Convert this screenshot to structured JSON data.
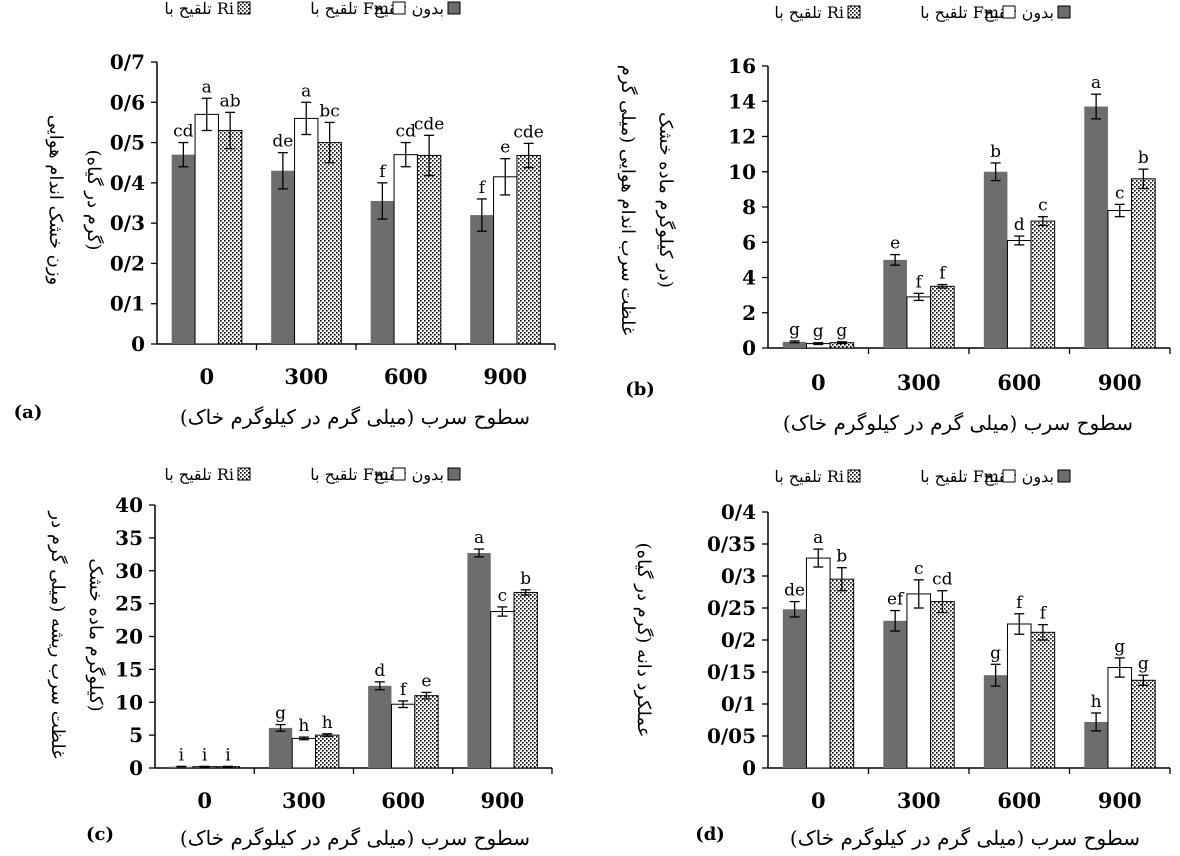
{
  "legend": [
    {
      "label": "بدون تلقیح",
      "style": "solid"
    },
    {
      "label": "تلقیح با Fm",
      "style": "open"
    },
    {
      "label": "تلقیح با Ri",
      "style": "dotted"
    }
  ],
  "colors": {
    "solid": "#6d6d6d",
    "open": "#ffffff",
    "dots": "#000000",
    "axis": "#000000"
  },
  "chart_data": [
    {
      "type": "bar",
      "panel_label": "(a)",
      "title": "",
      "xlabel": "سطوح سرب (میلی گرم در کیلوگرم خاک)",
      "ylabel_lines": [
        "وزن خشک اندام هوایی",
        "(گرم در گیاه)"
      ],
      "categories": [
        "0",
        "300",
        "600",
        "900"
      ],
      "ylim": [
        0,
        0.7
      ],
      "yticks": [
        "0",
        "0/1",
        "0/2",
        "0/3",
        "0/4",
        "0/5",
        "0/6",
        "0/7"
      ],
      "series": [
        {
          "name": "بدون تلقیح",
          "values": [
            0.47,
            0.43,
            0.355,
            0.32
          ],
          "errors": [
            0.03,
            0.045,
            0.045,
            0.04
          ],
          "letters": [
            "cd",
            "de",
            "f",
            "f"
          ]
        },
        {
          "name": "تلقیح با Fm",
          "values": [
            0.57,
            0.56,
            0.47,
            0.415
          ],
          "errors": [
            0.04,
            0.04,
            0.03,
            0.045
          ],
          "letters": [
            "a",
            "a",
            "cd",
            "e"
          ]
        },
        {
          "name": "تلقیح با Ri",
          "values": [
            0.53,
            0.5,
            0.468,
            0.468
          ],
          "errors": [
            0.045,
            0.05,
            0.05,
            0.03
          ],
          "letters": [
            "ab",
            "bc",
            "cde",
            "cde"
          ]
        }
      ]
    },
    {
      "type": "bar",
      "panel_label": "(b)",
      "title": "",
      "xlabel": "سطوح سرب (میلی گرم در کیلوگرم خاک)",
      "ylabel_lines": [
        "غلظت سرب اندام هوایی (میلی گرم",
        "در کیلوگرم ماده خشک)"
      ],
      "categories": [
        "0",
        "300",
        "600",
        "900"
      ],
      "ylim": [
        0,
        16
      ],
      "yticks": [
        "0",
        "2",
        "4",
        "6",
        "8",
        "10",
        "12",
        "14",
        "16"
      ],
      "series": [
        {
          "name": "بدون تلقیح",
          "values": [
            0.35,
            5.0,
            10.0,
            13.7
          ],
          "errors": [
            0.05,
            0.3,
            0.5,
            0.7
          ],
          "letters": [
            "g",
            "e",
            "b",
            "a"
          ]
        },
        {
          "name": "تلقیح با Fm",
          "values": [
            0.25,
            2.9,
            6.1,
            7.8
          ],
          "errors": [
            0.05,
            0.2,
            0.25,
            0.35
          ],
          "letters": [
            "g",
            "f",
            "d",
            "c"
          ]
        },
        {
          "name": "تلقیح با Ri",
          "values": [
            0.3,
            3.5,
            7.2,
            9.6
          ],
          "errors": [
            0.05,
            0.1,
            0.25,
            0.55
          ],
          "letters": [
            "g",
            "f",
            "c",
            "b"
          ]
        }
      ]
    },
    {
      "type": "bar",
      "panel_label": "(c)",
      "title": "",
      "xlabel": "سطوح سرب (میلی گرم در کیلوگرم خاک)",
      "ylabel_lines": [
        "غلظت سرب ریشه (میلی گرم در",
        "کیلوگرم ماده خشک)"
      ],
      "categories": [
        "0",
        "300",
        "600",
        "900"
      ],
      "ylim": [
        0,
        40
      ],
      "yticks": [
        "0",
        "5",
        "10",
        "15",
        "20",
        "25",
        "30",
        "35",
        "40"
      ],
      "series": [
        {
          "name": "بدون تلقیح",
          "values": [
            0.2,
            6.1,
            12.5,
            32.7
          ],
          "errors": [
            0.05,
            0.5,
            0.6,
            0.6
          ],
          "letters": [
            "i",
            "g",
            "d",
            "a"
          ]
        },
        {
          "name": "تلقیح با Fm",
          "values": [
            0.2,
            4.5,
            9.7,
            23.8
          ],
          "errors": [
            0.05,
            0.2,
            0.5,
            0.7
          ],
          "letters": [
            "i",
            "h",
            "f",
            "c"
          ]
        },
        {
          "name": "تلقیح با Ri",
          "values": [
            0.2,
            5.0,
            11.0,
            26.7
          ],
          "errors": [
            0.05,
            0.2,
            0.5,
            0.4
          ],
          "letters": [
            "i",
            "h",
            "e",
            "b"
          ]
        }
      ]
    },
    {
      "type": "bar",
      "panel_label": "(d)",
      "title": "",
      "xlabel": "سطوح سرب (میلی گرم در کیلوگرم خاک)",
      "ylabel_lines": [
        "عملکرد دانه (گرم در گیاه)"
      ],
      "categories": [
        "0",
        "300",
        "600",
        "900"
      ],
      "ylim": [
        0,
        0.4
      ],
      "yticks": [
        "0",
        "0/05",
        "0/1",
        "0/15",
        "0/2",
        "0/25",
        "0/3",
        "0/35",
        "0/4"
      ],
      "series": [
        {
          "name": "بدون تلقیح",
          "values": [
            0.248,
            0.23,
            0.145,
            0.072
          ],
          "errors": [
            0.012,
            0.016,
            0.017,
            0.014
          ],
          "letters": [
            "de",
            "ef",
            "g",
            "h"
          ]
        },
        {
          "name": "تلقیح با Fm",
          "values": [
            0.328,
            0.272,
            0.225,
            0.157
          ],
          "errors": [
            0.014,
            0.022,
            0.016,
            0.015
          ],
          "letters": [
            "a",
            "c",
            "f",
            "g"
          ]
        },
        {
          "name": "تلقیح با Ri",
          "values": [
            0.295,
            0.26,
            0.212,
            0.137
          ],
          "errors": [
            0.018,
            0.017,
            0.012,
            0.008
          ],
          "letters": [
            "b",
            "cd",
            "f",
            "g"
          ]
        }
      ]
    }
  ]
}
